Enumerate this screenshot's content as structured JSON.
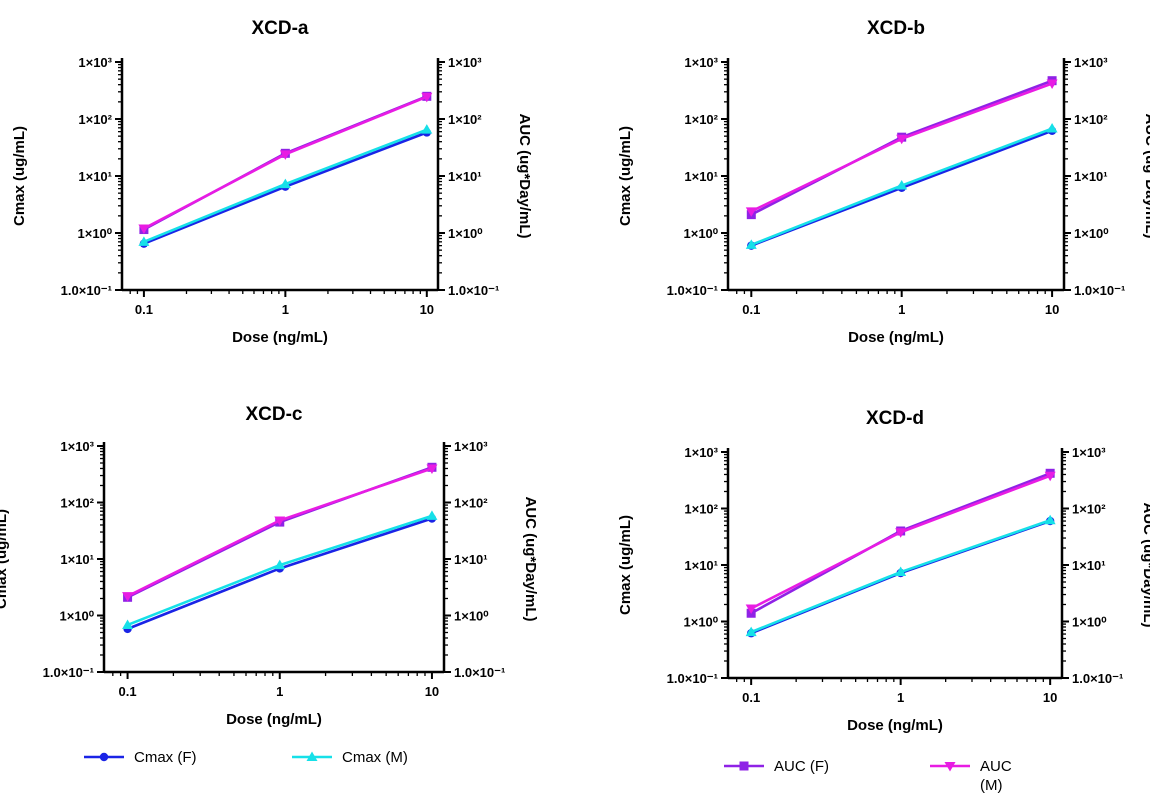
{
  "legend": [
    {
      "name": "Cmax (F)",
      "color": "#1a24e6",
      "marker": "circle"
    },
    {
      "name": "Cmax (M)",
      "color": "#16e0e8",
      "marker": "triangle-up"
    },
    {
      "name": "AUC (F)",
      "color": "#8f22e6",
      "marker": "square"
    },
    {
      "name": "AUC (M)",
      "color": "#e81ce3",
      "marker": "triangle-down"
    }
  ],
  "chart_data": [
    {
      "type": "line",
      "title": "XCD-a",
      "xlabel": "Dose (ng/mL)",
      "ylabel": "Cmax (ug/mL)",
      "y2label": "AUC (ug*Day/mL)",
      "x_scale": "log",
      "y_scale": "log",
      "xlim": [
        0.07,
        12
      ],
      "ylim": [
        0.1,
        1000
      ],
      "x_ticks": [
        "0.1",
        "1",
        "10"
      ],
      "y_ticks": [
        "1.0×10⁻¹",
        "1×10⁰",
        "1×10¹",
        "1×10²",
        "1×10³"
      ],
      "y2_ticks": [
        "1.0×10⁻¹",
        "1×10⁰",
        "1×10¹",
        "1×10²",
        "1×10³"
      ],
      "x": [
        0.1,
        1,
        10
      ],
      "series": [
        {
          "name": "Cmax (F)",
          "axis": "left",
          "values": [
            0.65,
            6.5,
            58
          ]
        },
        {
          "name": "Cmax (M)",
          "axis": "left",
          "values": [
            0.7,
            7.2,
            65
          ]
        },
        {
          "name": "AUC (F)",
          "axis": "right",
          "values": [
            1.15,
            25,
            250
          ]
        },
        {
          "name": "AUC (M)",
          "axis": "right",
          "values": [
            1.2,
            24,
            245
          ]
        }
      ]
    },
    {
      "type": "line",
      "title": "XCD-b",
      "xlabel": "Dose (ng/mL)",
      "ylabel": "Cmax (ug/mL)",
      "y2label": "AUC (ug*Day/mL)",
      "x_scale": "log",
      "y_scale": "log",
      "xlim": [
        0.07,
        12
      ],
      "ylim": [
        0.1,
        1000
      ],
      "x_ticks": [
        "0.1",
        "1",
        "10"
      ],
      "y_ticks": [
        "1.0×10⁻¹",
        "1×10⁰",
        "1×10¹",
        "1×10²",
        "1×10³"
      ],
      "y2_ticks": [
        "1.0×10⁻¹",
        "1×10⁰",
        "1×10¹",
        "1×10²",
        "1×10³"
      ],
      "x": [
        0.1,
        1,
        10
      ],
      "series": [
        {
          "name": "Cmax (F)",
          "axis": "left",
          "values": [
            0.6,
            6.2,
            62
          ]
        },
        {
          "name": "Cmax (M)",
          "axis": "left",
          "values": [
            0.62,
            6.8,
            68
          ]
        },
        {
          "name": "AUC (F)",
          "axis": "right",
          "values": [
            2.1,
            48,
            470
          ]
        },
        {
          "name": "AUC (M)",
          "axis": "right",
          "values": [
            2.4,
            45,
            420
          ]
        }
      ]
    },
    {
      "type": "line",
      "title": "XCD-c",
      "xlabel": "Dose (ng/mL)",
      "ylabel": "Cmax (ug/mL)",
      "y2label": "AUC (ug*Day/mL)",
      "x_scale": "log",
      "y_scale": "log",
      "xlim": [
        0.07,
        12
      ],
      "ylim": [
        0.1,
        1000
      ],
      "x_ticks": [
        "0.1",
        "1",
        "10"
      ],
      "y_ticks": [
        "1.0×10⁻¹",
        "1×10⁰",
        "1×10¹",
        "1×10²",
        "1×10³"
      ],
      "y2_ticks": [
        "1.0×10⁻¹",
        "1×10⁰",
        "1×10¹",
        "1×10²",
        "1×10³"
      ],
      "x": [
        0.1,
        1,
        10
      ],
      "series": [
        {
          "name": "Cmax (F)",
          "axis": "left",
          "values": [
            0.58,
            6.8,
            52
          ]
        },
        {
          "name": "Cmax (M)",
          "axis": "left",
          "values": [
            0.68,
            7.8,
            58
          ]
        },
        {
          "name": "AUC (F)",
          "axis": "right",
          "values": [
            2.1,
            45,
            420
          ]
        },
        {
          "name": "AUC (M)",
          "axis": "right",
          "values": [
            2.2,
            48,
            400
          ]
        }
      ]
    },
    {
      "type": "line",
      "title": "XCD-d",
      "xlabel": "Dose (ng/mL)",
      "ylabel": "Cmax (ug/mL)",
      "y2label": "AUC (ug*Day/mL)",
      "x_scale": "log",
      "y_scale": "log",
      "xlim": [
        0.07,
        12
      ],
      "ylim": [
        0.1,
        1000
      ],
      "x_ticks": [
        "0.1",
        "1",
        "10"
      ],
      "y_ticks": [
        "1.0×10⁻¹",
        "1×10⁰",
        "1×10¹",
        "1×10²",
        "1×10³"
      ],
      "y2_ticks": [
        "1.0×10⁻¹",
        "1×10⁰",
        "1×10¹",
        "1×10²",
        "1×10³"
      ],
      "x": [
        0.1,
        1,
        10
      ],
      "series": [
        {
          "name": "Cmax (F)",
          "axis": "left",
          "values": [
            0.62,
            7.2,
            60
          ]
        },
        {
          "name": "Cmax (M)",
          "axis": "left",
          "values": [
            0.65,
            7.5,
            62
          ]
        },
        {
          "name": "AUC (F)",
          "axis": "right",
          "values": [
            1.4,
            40,
            420
          ]
        },
        {
          "name": "AUC (M)",
          "axis": "right",
          "values": [
            1.7,
            38,
            380
          ]
        }
      ]
    }
  ]
}
